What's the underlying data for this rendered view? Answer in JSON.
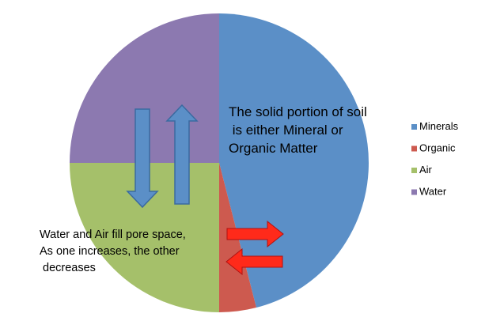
{
  "chart_data": {
    "type": "pie",
    "title": "",
    "slices": [
      {
        "label": "Minerals",
        "value": 46,
        "color": "#5b8fc7"
      },
      {
        "label": "Organic",
        "value": 4,
        "color": "#cd5a4f"
      },
      {
        "label": "Air",
        "value": 25,
        "color": "#a5c06a"
      },
      {
        "label": "Water",
        "value": 25,
        "color": "#8c79b0"
      }
    ],
    "legend": {
      "position": "right"
    },
    "annotations": {
      "solid": [
        "The solid portion of soil",
        " is either Mineral or",
        "Organic Matter"
      ],
      "pore": [
        "Water and Air fill pore space,",
        "As one increases, the other",
        " decreases"
      ]
    },
    "arrow_colors": {
      "vertical": "#5b8fc7",
      "horizontal": "#ff2a1a"
    }
  }
}
